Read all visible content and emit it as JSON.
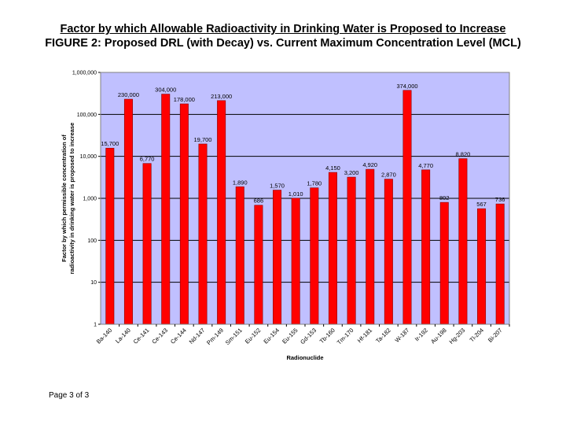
{
  "page": {
    "title_line1": "Factor by which Allowable Radioactivity in Drinking Water is Proposed to Increase",
    "title_line2": "FIGURE 2: Proposed DRL (with Decay) vs. Current Maximum Concentration Level (MCL)",
    "footer": "Page 3 of 3"
  },
  "colors": {
    "plot_background": "#c0c0ff",
    "bar_fill": "#ff0000",
    "bar_edge": "#8b0000",
    "gridline": "#000000"
  },
  "chart_data": {
    "type": "bar",
    "title": "FIGURE 2: Proposed DRL (with Decay) vs. Current Maximum Concentration Level (MCL)",
    "xlabel": "Radionuclide",
    "ylabel": "Factor by which permissible concentration of radioactivity in drinking water is proposed to increase",
    "ylabel_lines": [
      "Factor by which permissible concentration of",
      "radioactivity in drinking water is proposed to increase"
    ],
    "yscale": "log",
    "ylim": [
      1,
      1000000
    ],
    "yticks": [
      1,
      10,
      100,
      1000,
      10000,
      100000,
      1000000
    ],
    "ytick_labels": [
      "1",
      "10",
      "100",
      "1,000",
      "10,000",
      "100,000",
      "1,000,000"
    ],
    "grid": true,
    "categories": [
      "Ba-140",
      "La-140",
      "Ce-141",
      "Ce-143",
      "Ce-144",
      "Nd-147",
      "Pm-149",
      "Sm-151",
      "Eu-152",
      "Eu-154",
      "Eu-155",
      "Gd-153",
      "Tb-160",
      "Tm-170",
      "Hf-181",
      "Ta-182",
      "W-187",
      "Ir-192",
      "Au-198",
      "Hg-203",
      "Tl-204",
      "Bi-207"
    ],
    "values": [
      15700,
      230000,
      6770,
      304000,
      178000,
      19700,
      213000,
      1890,
      686,
      1570,
      1010,
      1780,
      4150,
      3200,
      4920,
      2870,
      374000,
      4770,
      802,
      8820,
      567,
      736
    ],
    "data_labels": [
      "15,700",
      "230,000",
      "6,770",
      "304,000",
      "178,000",
      "19,700",
      "213,000",
      "1,890",
      "686",
      "1,570",
      "1,010",
      "1,780",
      "4,150",
      "3,200",
      "4,920",
      "2,870",
      "374,000",
      "4,770",
      "802",
      "8,820",
      "567",
      "736"
    ]
  }
}
